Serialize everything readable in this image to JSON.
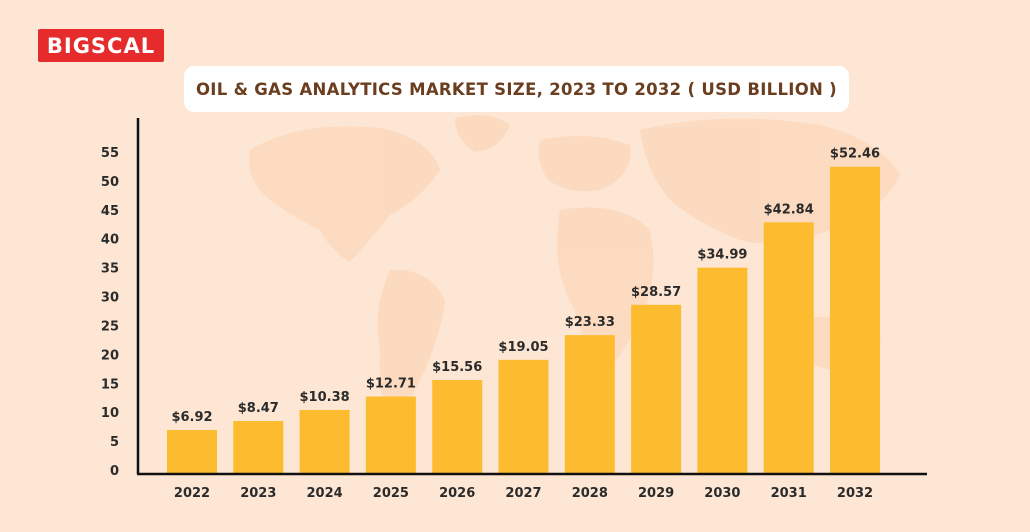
{
  "brand": {
    "logo_text": "BIGSCAL",
    "accent": "#e52b2b"
  },
  "colors": {
    "background": "#fde6d3",
    "bar": "#fdbc2f",
    "title_text": "#6b3e1f",
    "axis": "#111111"
  },
  "chart_data": {
    "type": "bar",
    "title": "OIL & GAS ANALYTICS MARKET SIZE, 2023 TO 2032 ( USD BILLION )",
    "categories": [
      "2022",
      "2023",
      "2024",
      "2025",
      "2026",
      "2027",
      "2028",
      "2029",
      "2030",
      "2031",
      "2032"
    ],
    "values": [
      6.92,
      8.47,
      10.38,
      12.71,
      15.56,
      19.05,
      23.33,
      28.57,
      34.99,
      42.84,
      52.46
    ],
    "data_labels": [
      "$6.92",
      "$8.47",
      "$10.38",
      "$12.71",
      "$15.56",
      "$19.05",
      "$23.33",
      "$28.57",
      "$34.99",
      "$42.84",
      "$52.46"
    ],
    "y_ticks": [
      "0",
      "5",
      "10",
      "15",
      "20",
      "25",
      "30",
      "35",
      "40",
      "45",
      "50",
      "55"
    ],
    "ylim": [
      0,
      55
    ],
    "xlabel": "",
    "ylabel": "",
    "grid": false,
    "legend": "none"
  }
}
